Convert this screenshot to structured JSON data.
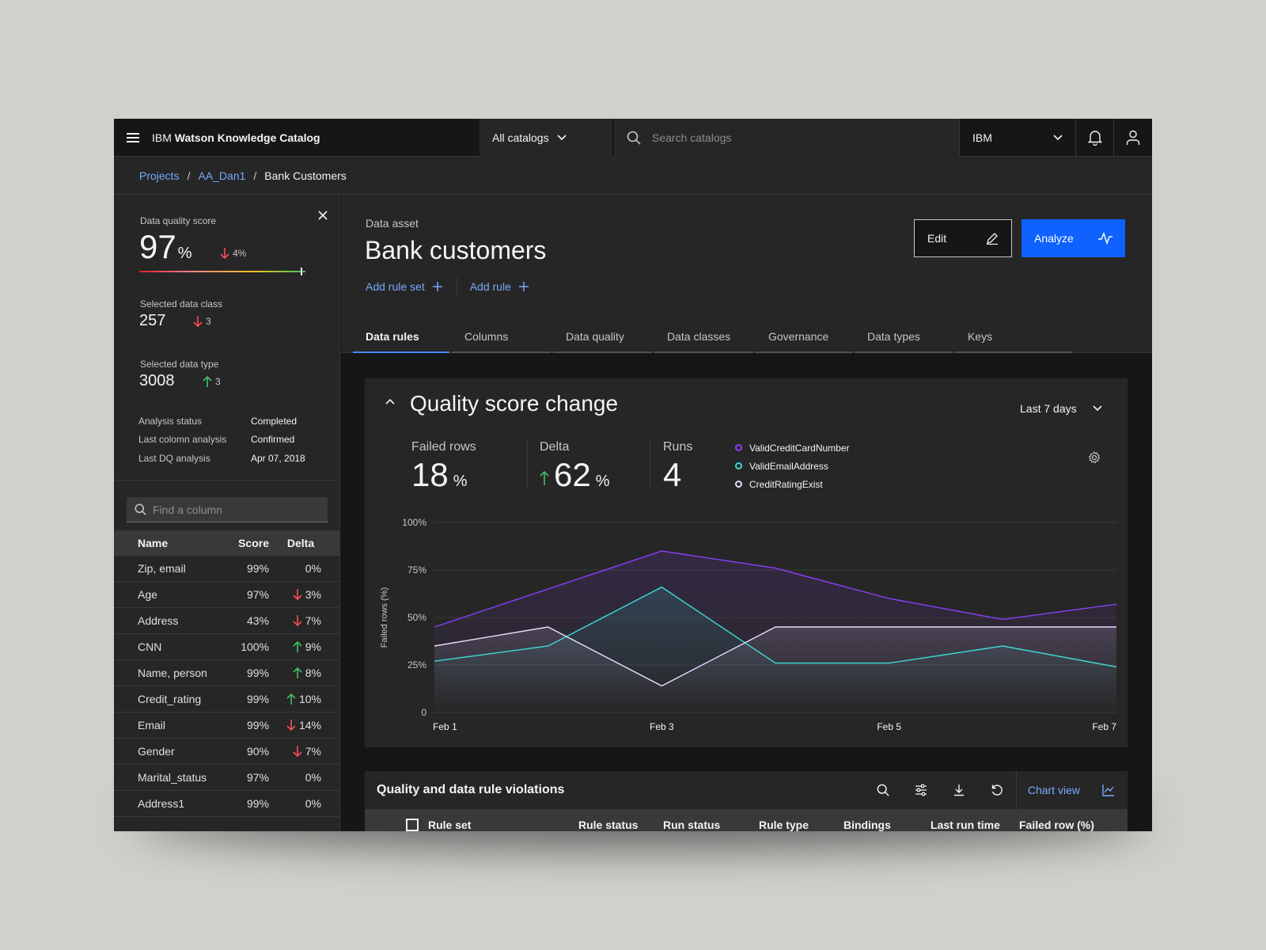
{
  "header": {
    "brand_prefix": "IBM",
    "brand_name": "Watson Knowledge Catalog",
    "catalog_switch": "All catalogs",
    "search_placeholder": "Search catalogs",
    "org": "IBM"
  },
  "breadcrumb": {
    "items": [
      "Projects",
      "AA_Dan1",
      "Bank Customers"
    ],
    "separator": "/"
  },
  "left_panel": {
    "dq_score_label": "Data quality score",
    "dq_score_value": "97",
    "dq_score_unit": "%",
    "dq_score_delta": "4%",
    "dq_score_fraction": 0.97,
    "data_class_label": "Selected data class",
    "data_class_value": "257",
    "data_class_delta": "3",
    "data_type_label": "Selected data type",
    "data_type_value": "3008",
    "data_type_delta": "3",
    "meta": [
      {
        "key": "Analysis status",
        "value": "Completed"
      },
      {
        "key": "Last colomn analysis",
        "value": "Confirmed"
      },
      {
        "key": "Last DQ analysis",
        "value": "Apr 07, 2018"
      }
    ],
    "column_search_placeholder": "Find a column",
    "table_headers": {
      "name": "Name",
      "score": "Score",
      "delta": "Delta"
    },
    "rows": [
      {
        "name": "Zip, email",
        "score": "99%",
        "delta": "0%",
        "dir": "none"
      },
      {
        "name": "Age",
        "score": "97%",
        "delta": "3%",
        "dir": "down"
      },
      {
        "name": "Address",
        "score": "43%",
        "delta": "7%",
        "dir": "down"
      },
      {
        "name": "CNN",
        "score": "100%",
        "delta": "9%",
        "dir": "up"
      },
      {
        "name": "Name, person",
        "score": "99%",
        "delta": "8%",
        "dir": "up"
      },
      {
        "name": "Credit_rating",
        "score": "99%",
        "delta": "10%",
        "dir": "up"
      },
      {
        "name": "Email",
        "score": "99%",
        "delta": "14%",
        "dir": "down"
      },
      {
        "name": "Gender",
        "score": "90%",
        "delta": "7%",
        "dir": "down"
      },
      {
        "name": "Marital_status",
        "score": "97%",
        "delta": "0%",
        "dir": "none"
      },
      {
        "name": "Address1",
        "score": "99%",
        "delta": "0%",
        "dir": "none"
      }
    ]
  },
  "asset": {
    "type_label": "Data asset",
    "title": "Bank customers",
    "add_rule_set": "Add rule set",
    "add_rule": "Add rule",
    "edit_label": "Edit",
    "analyze_label": "Analyze"
  },
  "tabs": [
    "Data rules",
    "Columns",
    "Data quality",
    "Data classes",
    "Governance",
    "Data types",
    "Keys"
  ],
  "quality_card": {
    "title": "Quality score change",
    "range": "Last 7 days",
    "failed_rows_label": "Failed rows",
    "failed_rows_value": "18",
    "delta_label": "Delta",
    "delta_value": "62",
    "runs_label": "Runs",
    "runs_value": "4",
    "unit": "%"
  },
  "colors": {
    "accent": "#0f62fe",
    "link": "#78a9ff",
    "up": "#42be65",
    "down": "#fa4d56",
    "series": [
      "#8a3ffc",
      "#3ddbd9",
      "#e8daff"
    ]
  },
  "chart_data": {
    "type": "line",
    "x": [
      "Feb 1",
      "Feb 2",
      "Feb 3",
      "Feb 4",
      "Feb 5",
      "Feb 6",
      "Feb 7"
    ],
    "x_tick_labels": [
      "Feb 1",
      "Feb 3",
      "Feb 5",
      "Feb 7"
    ],
    "ylabel": "Failed rows (%)",
    "y_tick_labels": [
      "0",
      "25%",
      "50%",
      "75%",
      "100%"
    ],
    "ylim": [
      0,
      100
    ],
    "grid": true,
    "legend_position": "top",
    "series": [
      {
        "name": "ValidCreditCardNumber",
        "values": [
          45,
          65,
          85,
          76,
          60,
          49,
          57
        ]
      },
      {
        "name": "ValidEmailAddress",
        "values": [
          27,
          35,
          66,
          26,
          26,
          35,
          24
        ]
      },
      {
        "name": "CreditRatingExist",
        "values": [
          35,
          45,
          14,
          45,
          45,
          45,
          45
        ]
      }
    ]
  },
  "violations": {
    "title": "Quality and data rule violations",
    "chart_view_label": "Chart view",
    "columns": [
      "Rule set",
      "Rule status",
      "Run status",
      "Rule type",
      "Bindings",
      "Last run time",
      "Failed row (%)"
    ]
  }
}
